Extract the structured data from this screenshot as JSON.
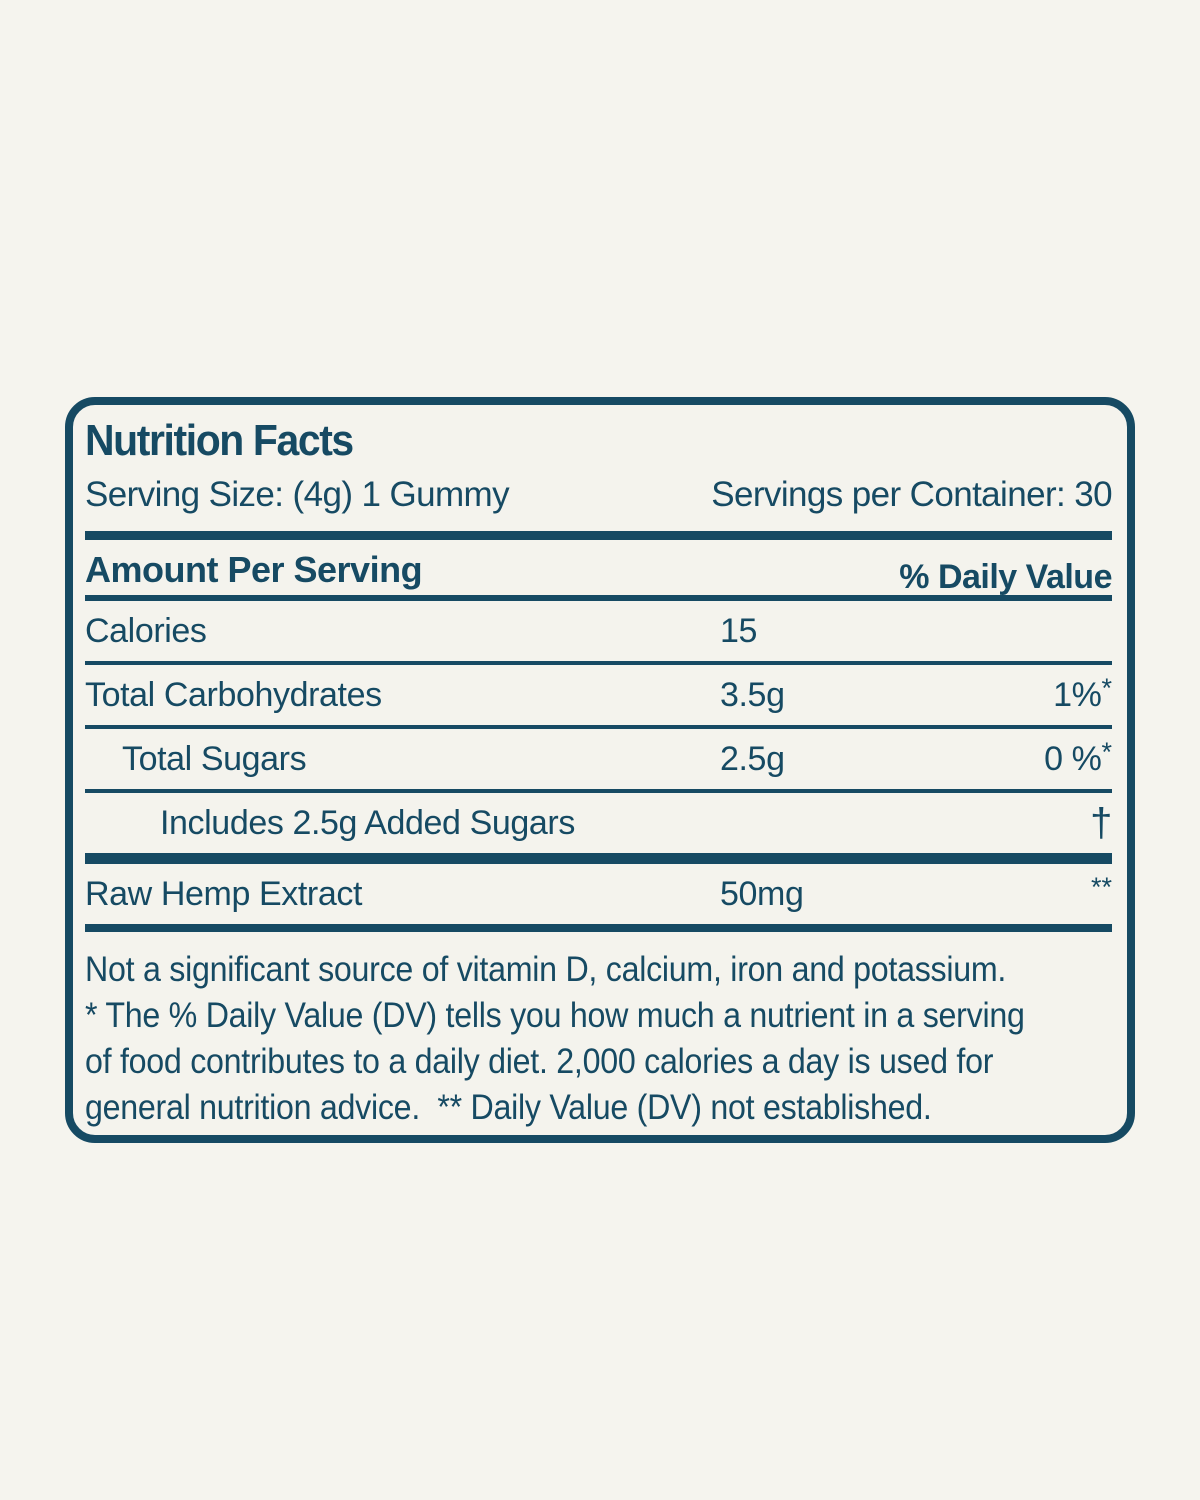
{
  "label": {
    "title": "Nutrition Facts",
    "serving_size": "Serving Size: (4g) 1 Gummy",
    "servings_per_container": "Servings per Container: 30",
    "amount_per_serving": "Amount Per Serving",
    "daily_value_header": "% Daily Value",
    "rows": [
      {
        "name": "Calories",
        "amount": "15",
        "dv": "",
        "dv_mark": ""
      },
      {
        "name": "Total Carbohydrates",
        "amount": "3.5g",
        "dv": "1%",
        "dv_mark": "*"
      },
      {
        "name": "Total Sugars",
        "amount": "2.5g",
        "dv": "0 %",
        "dv_mark": "*"
      },
      {
        "name": "Includes 2.5g Added Sugars",
        "amount": "",
        "dv": "",
        "dv_mark": "†"
      },
      {
        "name": "Raw Hemp Extract",
        "amount": "50mg",
        "dv": "",
        "dv_mark": "**"
      }
    ],
    "footnote_lines": [
      "Not a significant source of vitamin D, calcium, iron and potassium.",
      "* The % Daily Value (DV) tells you how much a nutrient in a serving",
      "of food contributes to a daily diet. 2,000 calories a day is used for",
      "general nutrition advice.  ** Daily Value (DV) not established."
    ],
    "colors": {
      "ink": "#164a63",
      "background": "#f5f4ee",
      "panel_background": "#f4f3ed"
    }
  }
}
